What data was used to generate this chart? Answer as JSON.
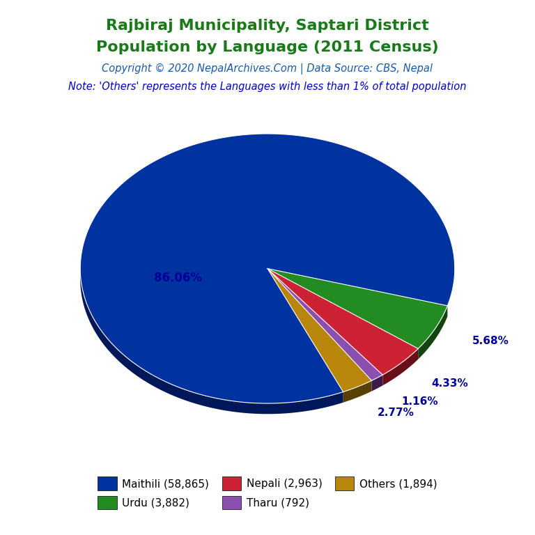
{
  "title_line1": "Rajbiraj Municipality, Saptari District",
  "title_line2": "Population by Language (2011 Census)",
  "copyright": "Copyright © 2020 NepalArchives.Com | Data Source: CBS, Nepal",
  "note": "Note: 'Others' represents the Languages with less than 1% of total population",
  "labels": [
    "Maithili",
    "Urdu",
    "Nepali",
    "Tharu",
    "Others"
  ],
  "values": [
    58865,
    3882,
    2963,
    792,
    1894
  ],
  "colors": [
    "#0033A0",
    "#228B22",
    "#CC2233",
    "#8B4FAF",
    "#B8860B"
  ],
  "dark_colors": [
    "#00175a",
    "#114411",
    "#6a0e18",
    "#3a1a4a",
    "#5a4000"
  ],
  "pct_labels": [
    "86.06%",
    "5.68%",
    "4.33%",
    "1.16%",
    "2.77%"
  ],
  "legend_labels": [
    "Maithili (58,865)",
    "Urdu (3,882)",
    "Nepali (2,963)",
    "Tharu (792)",
    "Others (1,894)"
  ],
  "title_color": "#1a7a1a",
  "copyright_color": "#1a5aaa",
  "note_color": "#0000cc",
  "pct_color": "#000099",
  "background_color": "#ffffff",
  "figsize": [
    7.68,
    7.68
  ],
  "dpi": 100,
  "start_angle": 90.0,
  "depth": 0.055
}
